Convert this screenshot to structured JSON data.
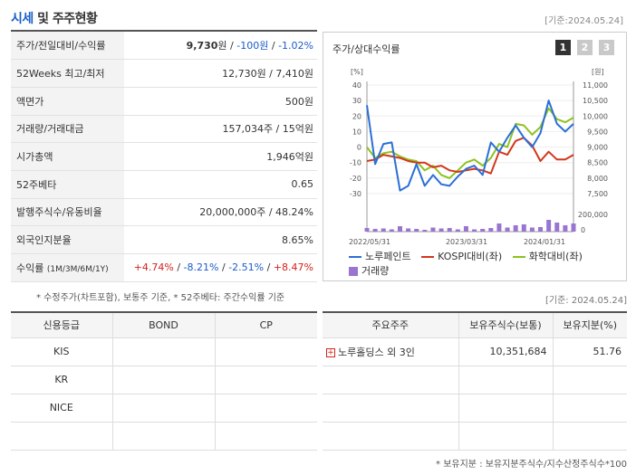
{
  "header": {
    "title_a": "시세",
    "title_sep": " 및 ",
    "title_b": "주주현황",
    "date": "[기준:2024.05.24]"
  },
  "price_table": {
    "row1_label": "주가/전일대비/수익률",
    "row1_price": "9,730",
    "row1_price_unit": "원",
    "row1_change": "-100원",
    "row1_rate": "-1.02%",
    "row2_label": "52Weeks 최고/최저",
    "row2_value": "12,730원 / 7,410원",
    "row3_label": "액면가",
    "row3_value": "500원",
    "row4_label": "거래량/거래대금",
    "row4_value": "157,034주 / 15억원",
    "row5_label": "시가총액",
    "row5_value": "1,946억원",
    "row6_label": "52주베타",
    "row6_value": "0.65",
    "row7_label": "발행주식수/유동비율",
    "row7_value": "20,000,000주 / 48.24%",
    "row8_label": "외국인지분율",
    "row8_value": "8.65%",
    "row9_label": "수익률",
    "row9_label_sub": "(1M/3M/6M/1Y)",
    "row9_1m": "+4.74%",
    "row9_3m": "-8.21%",
    "row9_6m": "-2.51%",
    "row9_1y": "+8.47%",
    "slash": "/"
  },
  "note_left": "* 수정주가(차트포함), 보통주 기준, * 52주베타: 주간수익률 기준",
  "chart_panel": {
    "title": "주가/상대수익률",
    "tabs": [
      "1",
      "2",
      "3"
    ],
    "legend_stock": "노루페인트",
    "legend_kospi": "KOSPI대비(좌)",
    "legend_sector": "화학대비(좌)",
    "legend_volume": "거래량",
    "color_stock": "#2a6fd6",
    "color_kospi": "#d3361c",
    "color_sector": "#8dc21f",
    "color_volume": "#9a74d1"
  },
  "chart_data": {
    "type": "line",
    "left_axis_unit": "[%]",
    "right_axis_unit": "[원]",
    "left_ticks": [
      "40",
      "30",
      "20",
      "10",
      "0",
      "-10",
      "-20",
      "-30"
    ],
    "right_ticks": [
      "11,000",
      "10,500",
      "10,000",
      "9,500",
      "9,000",
      "8,500",
      "8,000",
      "7,500"
    ],
    "volume_ticks": [
      "200,000",
      "0"
    ],
    "x_labels": [
      "2022/05/31",
      "2023/03/31",
      "2024/01/31"
    ],
    "left_range": [
      -30,
      40
    ],
    "volume_range": [
      0,
      200000
    ],
    "series": [
      {
        "name": "노루페인트",
        "values": [
          27,
          -11,
          2,
          3,
          -28,
          -25,
          -11,
          -25,
          -18,
          -24,
          -25,
          -19,
          -14,
          -12,
          -18,
          3,
          -3,
          6,
          14,
          6,
          0,
          9,
          30,
          15,
          10,
          15
        ]
      },
      {
        "name": "KOSPI대비(좌)",
        "values": [
          -9,
          -8,
          -5,
          -6,
          -7,
          -9,
          -10,
          -10,
          -13,
          -12,
          -15,
          -16,
          -15,
          -14,
          -15,
          -17,
          -3,
          -5,
          4,
          6,
          1,
          -9,
          -3,
          -8,
          -8,
          -5
        ]
      },
      {
        "name": "화학대비(좌)",
        "values": [
          0,
          -7,
          -4,
          -3,
          -6,
          -8,
          -9,
          -15,
          -12,
          -18,
          -20,
          -15,
          -10,
          -8,
          -12,
          -7,
          2,
          0,
          15,
          14,
          8,
          13,
          25,
          18,
          16,
          19
        ]
      }
    ],
    "volume": [
      40000,
      30000,
      35000,
      25000,
      60000,
      35000,
      30000,
      20000,
      45000,
      35000,
      40000,
      25000,
      60000,
      25000,
      30000,
      40000,
      90000,
      45000,
      70000,
      80000,
      45000,
      50000,
      130000,
      100000,
      70000,
      90000
    ]
  },
  "date_right": "[기준: 2024.05.24]",
  "credit_table": {
    "headers": [
      "신용등급",
      "BOND",
      "CP"
    ],
    "rows": [
      [
        "KIS",
        "",
        ""
      ],
      [
        "KR",
        "",
        ""
      ],
      [
        "NICE",
        "",
        ""
      ],
      [
        "",
        "",
        ""
      ]
    ]
  },
  "holders_table": {
    "headers": [
      "주요주주",
      "보유주식수(보통)",
      "보유지분(%)"
    ],
    "rows": [
      [
        "노루홀딩스 외 3인",
        "10,351,684",
        "51.76"
      ],
      [
        "",
        "",
        ""
      ],
      [
        "",
        "",
        ""
      ],
      [
        "",
        "",
        ""
      ]
    ],
    "expand_icon": "+"
  },
  "note_right": "* 보유지분 : 보유지분주식수/지수산정주식수*100"
}
